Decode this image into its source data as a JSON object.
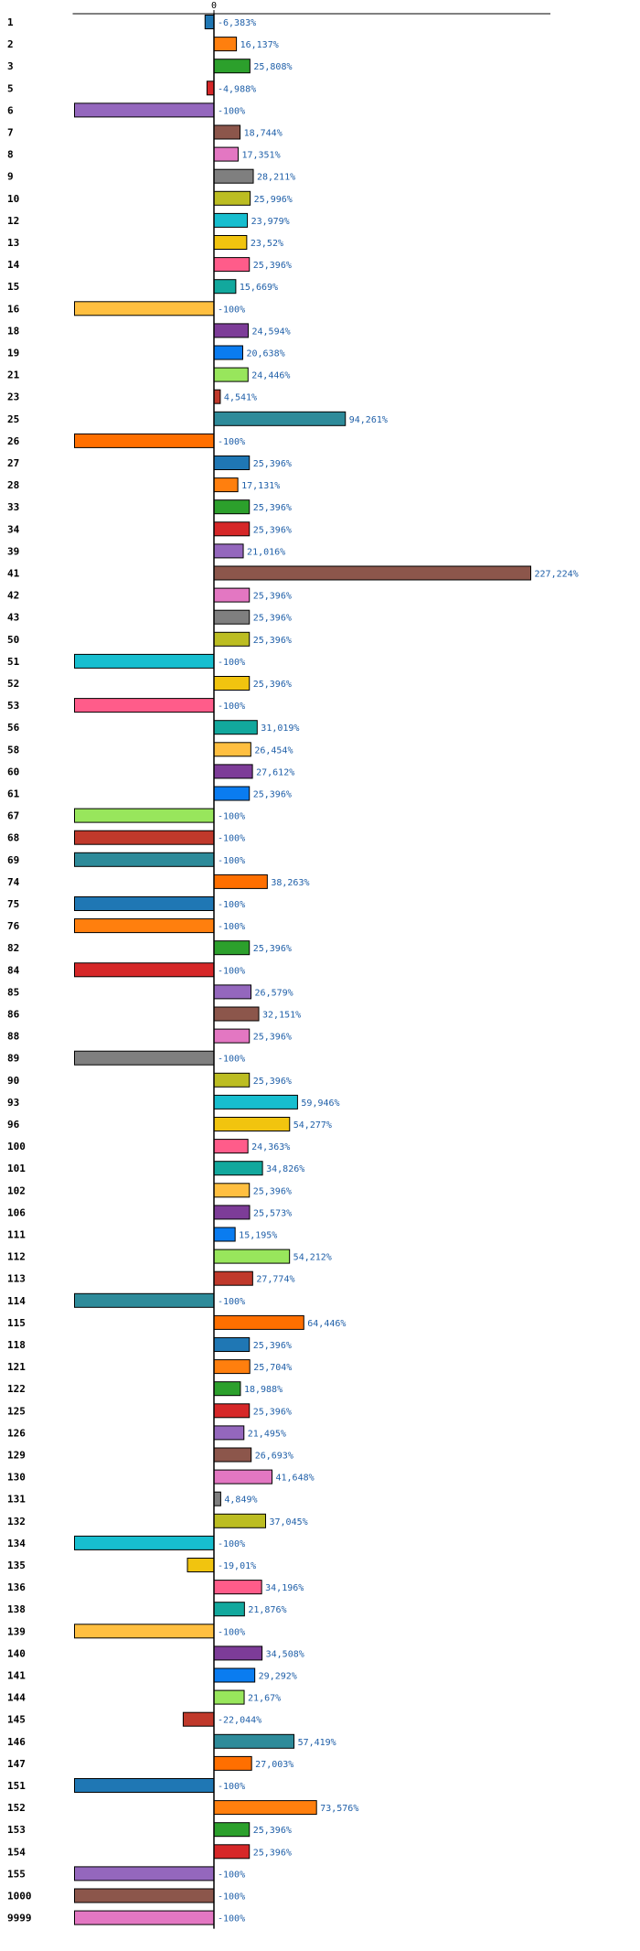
{
  "chart_data": {
    "type": "bar",
    "orientation": "horizontal",
    "title": "",
    "xlabel": "",
    "ylabel": "",
    "xlim": [
      -100,
      240
    ],
    "xticks": [
      0
    ],
    "xtick_labels": [
      "0"
    ],
    "grid": false,
    "legend": "none",
    "highlight_category": "145",
    "highlight_color": "#e00000",
    "label_color": "#1f5fa8",
    "palette": [
      "#1f77b4",
      "#ff7f0e",
      "#2ca02c",
      "#d62728",
      "#9467bd",
      "#8c564b",
      "#e377c2",
      "#7f7f7f",
      "#bcbd22",
      "#17becf",
      "#f1c40f",
      "#ff5c8a",
      "#12a89d",
      "#ffbf40",
      "#7d3c98",
      "#0a7cf0",
      "#98e65c",
      "#c0392b",
      "#2e8b9a",
      "#ff6f00"
    ],
    "categories": [
      "1",
      "2",
      "3",
      "5",
      "6",
      "7",
      "8",
      "9",
      "10",
      "12",
      "13",
      "14",
      "15",
      "16",
      "18",
      "19",
      "21",
      "23",
      "25",
      "26",
      "27",
      "28",
      "33",
      "34",
      "39",
      "41",
      "42",
      "43",
      "50",
      "51",
      "52",
      "53",
      "56",
      "58",
      "60",
      "61",
      "67",
      "68",
      "69",
      "74",
      "75",
      "76",
      "82",
      "84",
      "85",
      "86",
      "88",
      "89",
      "90",
      "93",
      "96",
      "100",
      "101",
      "102",
      "106",
      "111",
      "112",
      "113",
      "114",
      "115",
      "118",
      "121",
      "122",
      "125",
      "126",
      "129",
      "130",
      "131",
      "132",
      "134",
      "135",
      "136",
      "138",
      "139",
      "140",
      "141",
      "144",
      "145",
      "146",
      "147",
      "151",
      "152",
      "153",
      "154",
      "155",
      "1000",
      "9999"
    ],
    "values": [
      -6.383,
      16.137,
      25.808,
      -4.988,
      -100,
      18.744,
      17.351,
      28.211,
      25.996,
      23.979,
      23.52,
      25.396,
      15.669,
      -100,
      24.594,
      20.638,
      24.446,
      4.541,
      94.261,
      -100,
      25.396,
      17.131,
      25.396,
      25.396,
      21.016,
      227.224,
      25.396,
      25.396,
      25.396,
      -100,
      25.396,
      -100,
      31.019,
      26.454,
      27.612,
      25.396,
      -100,
      -100,
      -100,
      38.263,
      -100,
      -100,
      25.396,
      -100,
      26.579,
      32.151,
      25.396,
      -100,
      25.396,
      59.946,
      54.277,
      24.363,
      34.826,
      25.396,
      25.573,
      15.195,
      54.212,
      27.774,
      -100,
      64.446,
      25.396,
      25.704,
      18.988,
      25.396,
      21.495,
      26.693,
      41.648,
      4.849,
      37.045,
      -100,
      -19.01,
      34.196,
      21.876,
      -100,
      34.508,
      29.292,
      21.67,
      -22.044,
      57.419,
      27.003,
      -100,
      73.576,
      25.396,
      25.396,
      -100,
      -100,
      -100
    ],
    "value_labels": [
      "-6,383%",
      "16,137%",
      "25,808%",
      "-4,988%",
      "-100%",
      "18,744%",
      "17,351%",
      "28,211%",
      "25,996%",
      "23,979%",
      "23,52%",
      "25,396%",
      "15,669%",
      "-100%",
      "24,594%",
      "20,638%",
      "24,446%",
      "4,541%",
      "94,261%",
      "-100%",
      "25,396%",
      "17,131%",
      "25,396%",
      "25,396%",
      "21,016%",
      "227,224%",
      "25,396%",
      "25,396%",
      "25,396%",
      "-100%",
      "25,396%",
      "-100%",
      "31,019%",
      "26,454%",
      "27,612%",
      "25,396%",
      "-100%",
      "-100%",
      "-100%",
      "38,263%",
      "-100%",
      "-100%",
      "25,396%",
      "-100%",
      "26,579%",
      "32,151%",
      "25,396%",
      "-100%",
      "25,396%",
      "59,946%",
      "54,277%",
      "24,363%",
      "34,826%",
      "25,396%",
      "25,573%",
      "15,195%",
      "54,212%",
      "27,774%",
      "-100%",
      "64,446%",
      "25,396%",
      "25,704%",
      "18,988%",
      "25,396%",
      "21,495%",
      "26,693%",
      "41,648%",
      "4,849%",
      "37,045%",
      "-100%",
      "-19,01%",
      "34,196%",
      "21,876%",
      "-100%",
      "34,508%",
      "29,292%",
      "21,67%",
      "-22,044%",
      "57,419%",
      "27,003%",
      "-100%",
      "73,576%",
      "25,396%",
      "25,396%",
      "-100%",
      "-100%",
      "-100%"
    ]
  }
}
